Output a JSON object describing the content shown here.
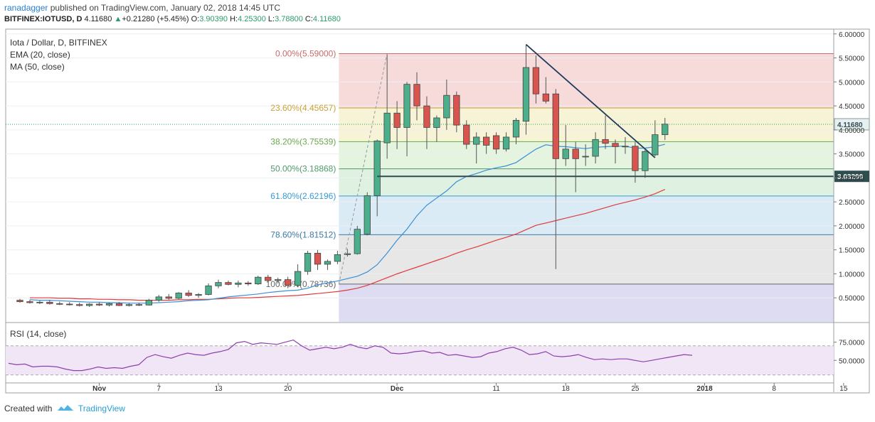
{
  "header": {
    "line1_user": "ranadagger",
    "line1_rest": "published on TradingView.com, January 02, 2018 14:45 UTC",
    "symbol": "BITFINEX:IOTUSD, D",
    "last": "4.11680",
    "arrow": "▲",
    "change": "+0.21280 (+5.45%)",
    "o_label": "O:",
    "o": "3.90390",
    "h_label": "H:",
    "h": "4.25300",
    "l_label": "L:",
    "l": "3.78800",
    "c_label": "C:",
    "c": "4.11680"
  },
  "legend": [
    "Iota / Dollar, D, BITFINEX",
    "EMA (20, close)",
    "MA (50, close)"
  ],
  "rsi_label": "RSI (14, close)",
  "footer": {
    "created": "Created with",
    "brand": "TradingView"
  },
  "colors": {
    "up": "#4caf8c",
    "down": "#d9534f",
    "ema": "#3b8ed6",
    "ma": "#e03a3a",
    "rsi": "#8e3fae"
  },
  "chart_data": {
    "type": "candlestick",
    "price_axis": {
      "ticks": [
        0.5,
        1.0,
        1.5,
        2.0,
        2.5,
        3.0,
        3.5,
        4.0,
        4.5,
        5.0,
        5.5,
        6.0
      ],
      "tick_labels": [
        "0.50000",
        "1.00000",
        "1.50000",
        "2.00000",
        "2.50000",
        "3.00000",
        "3.50000",
        "4.00000",
        "4.50000",
        "5.00000",
        "5.50000",
        "6.00000"
      ],
      "range": [
        0.0,
        6.1
      ],
      "last_price_label": "4.11680",
      "support_label": "3.03200"
    },
    "x_axis": {
      "labels": [
        {
          "text": "Nov",
          "day": 8
        },
        {
          "text": "7",
          "day": 14
        },
        {
          "text": "13",
          "day": 20
        },
        {
          "text": "20",
          "day": 27
        },
        {
          "text": "Dec",
          "day": 38
        },
        {
          "text": "11",
          "day": 48
        },
        {
          "text": "18",
          "day": 55
        },
        {
          "text": "25",
          "day": 62
        },
        {
          "text": "2018",
          "day": 69
        },
        {
          "text": "8",
          "day": 76
        },
        {
          "text": "15",
          "day": 83
        }
      ]
    },
    "candles": [
      {
        "o": 0.45,
        "h": 0.48,
        "l": 0.4,
        "c": 0.42
      },
      {
        "o": 0.42,
        "h": 0.46,
        "l": 0.38,
        "c": 0.4
      },
      {
        "o": 0.4,
        "h": 0.44,
        "l": 0.37,
        "c": 0.41
      },
      {
        "o": 0.41,
        "h": 0.45,
        "l": 0.36,
        "c": 0.38
      },
      {
        "o": 0.38,
        "h": 0.42,
        "l": 0.35,
        "c": 0.37
      },
      {
        "o": 0.37,
        "h": 0.41,
        "l": 0.34,
        "c": 0.36
      },
      {
        "o": 0.36,
        "h": 0.4,
        "l": 0.32,
        "c": 0.34
      },
      {
        "o": 0.34,
        "h": 0.39,
        "l": 0.31,
        "c": 0.37
      },
      {
        "o": 0.37,
        "h": 0.41,
        "l": 0.33,
        "c": 0.35
      },
      {
        "o": 0.35,
        "h": 0.4,
        "l": 0.32,
        "c": 0.38
      },
      {
        "o": 0.38,
        "h": 0.41,
        "l": 0.33,
        "c": 0.34
      },
      {
        "o": 0.34,
        "h": 0.39,
        "l": 0.32,
        "c": 0.36
      },
      {
        "o": 0.36,
        "h": 0.4,
        "l": 0.33,
        "c": 0.35
      },
      {
        "o": 0.35,
        "h": 0.48,
        "l": 0.34,
        "c": 0.45
      },
      {
        "o": 0.45,
        "h": 0.56,
        "l": 0.42,
        "c": 0.52
      },
      {
        "o": 0.52,
        "h": 0.58,
        "l": 0.46,
        "c": 0.49
      },
      {
        "o": 0.49,
        "h": 0.62,
        "l": 0.47,
        "c": 0.6
      },
      {
        "o": 0.6,
        "h": 0.66,
        "l": 0.52,
        "c": 0.55
      },
      {
        "o": 0.55,
        "h": 0.6,
        "l": 0.5,
        "c": 0.57
      },
      {
        "o": 0.57,
        "h": 0.8,
        "l": 0.55,
        "c": 0.75
      },
      {
        "o": 0.75,
        "h": 0.88,
        "l": 0.7,
        "c": 0.82
      },
      {
        "o": 0.82,
        "h": 0.86,
        "l": 0.76,
        "c": 0.78
      },
      {
        "o": 0.78,
        "h": 0.86,
        "l": 0.72,
        "c": 0.81
      },
      {
        "o": 0.81,
        "h": 0.85,
        "l": 0.75,
        "c": 0.79
      },
      {
        "o": 0.79,
        "h": 0.96,
        "l": 0.77,
        "c": 0.93
      },
      {
        "o": 0.93,
        "h": 0.98,
        "l": 0.82,
        "c": 0.86
      },
      {
        "o": 0.86,
        "h": 0.92,
        "l": 0.8,
        "c": 0.88
      },
      {
        "o": 0.88,
        "h": 0.94,
        "l": 0.7,
        "c": 0.76
      },
      {
        "o": 0.76,
        "h": 1.2,
        "l": 0.72,
        "c": 1.05
      },
      {
        "o": 1.05,
        "h": 1.48,
        "l": 0.98,
        "c": 1.43
      },
      {
        "o": 1.43,
        "h": 1.5,
        "l": 1.08,
        "c": 1.2
      },
      {
        "o": 1.2,
        "h": 1.3,
        "l": 1.08,
        "c": 1.26
      },
      {
        "o": 1.26,
        "h": 1.48,
        "l": 1.2,
        "c": 1.4
      },
      {
        "o": 1.4,
        "h": 1.52,
        "l": 1.36,
        "c": 1.42
      },
      {
        "o": 1.42,
        "h": 2.0,
        "l": 1.4,
        "c": 1.93
      },
      {
        "o": 1.83,
        "h": 2.7,
        "l": 1.8,
        "c": 2.63
      },
      {
        "o": 2.63,
        "h": 3.8,
        "l": 2.2,
        "c": 3.77
      },
      {
        "o": 3.73,
        "h": 5.59,
        "l": 3.4,
        "c": 4.35
      },
      {
        "o": 4.35,
        "h": 4.6,
        "l": 3.6,
        "c": 4.05
      },
      {
        "o": 4.05,
        "h": 5.0,
        "l": 3.45,
        "c": 4.95
      },
      {
        "o": 4.95,
        "h": 5.2,
        "l": 4.2,
        "c": 4.5
      },
      {
        "o": 4.5,
        "h": 4.7,
        "l": 3.6,
        "c": 4.05
      },
      {
        "o": 4.05,
        "h": 4.3,
        "l": 3.75,
        "c": 4.25
      },
      {
        "o": 4.25,
        "h": 5.05,
        "l": 4.0,
        "c": 4.72
      },
      {
        "o": 4.72,
        "h": 4.8,
        "l": 3.95,
        "c": 4.1
      },
      {
        "o": 4.1,
        "h": 4.2,
        "l": 3.6,
        "c": 3.7
      },
      {
        "o": 3.7,
        "h": 3.95,
        "l": 3.3,
        "c": 3.85
      },
      {
        "o": 3.85,
        "h": 3.95,
        "l": 3.5,
        "c": 3.68
      },
      {
        "o": 3.88,
        "h": 3.95,
        "l": 3.5,
        "c": 3.6
      },
      {
        "o": 3.6,
        "h": 3.95,
        "l": 3.55,
        "c": 3.85
      },
      {
        "o": 3.85,
        "h": 4.25,
        "l": 3.7,
        "c": 4.2
      },
      {
        "o": 4.18,
        "h": 5.78,
        "l": 3.9,
        "c": 5.3
      },
      {
        "o": 5.3,
        "h": 5.55,
        "l": 4.55,
        "c": 4.75
      },
      {
        "o": 4.75,
        "h": 5.1,
        "l": 4.55,
        "c": 4.6
      },
      {
        "o": 4.75,
        "h": 4.85,
        "l": 1.1,
        "c": 3.4
      },
      {
        "o": 3.4,
        "h": 4.1,
        "l": 3.25,
        "c": 3.6
      },
      {
        "o": 3.6,
        "h": 3.75,
        "l": 2.7,
        "c": 3.4
      },
      {
        "o": 3.45,
        "h": 3.7,
        "l": 3.25,
        "c": 3.45
      },
      {
        "o": 3.45,
        "h": 3.95,
        "l": 3.3,
        "c": 3.8
      },
      {
        "o": 3.8,
        "h": 4.3,
        "l": 3.6,
        "c": 3.72
      },
      {
        "o": 3.72,
        "h": 3.8,
        "l": 3.3,
        "c": 3.65
      },
      {
        "o": 3.66,
        "h": 3.85,
        "l": 3.5,
        "c": 3.66
      },
      {
        "o": 3.66,
        "h": 3.75,
        "l": 2.9,
        "c": 3.15
      },
      {
        "o": 3.15,
        "h": 3.6,
        "l": 3.0,
        "c": 3.55
      },
      {
        "o": 3.48,
        "h": 4.2,
        "l": 3.45,
        "c": 3.9
      },
      {
        "o": 3.9,
        "h": 4.25,
        "l": 3.79,
        "c": 4.12
      }
    ],
    "ema20": [
      0.46,
      0.45,
      0.45,
      0.44,
      0.43,
      0.42,
      0.41,
      0.41,
      0.4,
      0.4,
      0.39,
      0.39,
      0.39,
      0.4,
      0.41,
      0.42,
      0.44,
      0.45,
      0.46,
      0.49,
      0.52,
      0.54,
      0.56,
      0.58,
      0.61,
      0.63,
      0.65,
      0.66,
      0.7,
      0.77,
      0.81,
      0.85,
      0.9,
      0.95,
      1.04,
      1.19,
      1.43,
      1.7,
      1.93,
      2.21,
      2.43,
      2.58,
      2.73,
      2.92,
      3.03,
      3.09,
      3.16,
      3.21,
      3.25,
      3.32,
      3.46,
      3.6,
      3.69,
      3.66,
      3.65,
      3.63,
      3.61,
      3.64,
      3.65,
      3.66,
      3.66,
      3.62,
      3.62,
      3.65,
      3.7
    ],
    "ma50": [
      0.5,
      0.5,
      0.5,
      0.49,
      0.49,
      0.48,
      0.48,
      0.47,
      0.47,
      0.46,
      0.46,
      0.45,
      0.45,
      0.45,
      0.45,
      0.46,
      0.46,
      0.47,
      0.47,
      0.48,
      0.49,
      0.5,
      0.5,
      0.51,
      0.52,
      0.53,
      0.54,
      0.55,
      0.57,
      0.59,
      0.61,
      0.63,
      0.66,
      0.7,
      0.76,
      0.84,
      0.92,
      1.0,
      1.07,
      1.14,
      1.21,
      1.28,
      1.35,
      1.43,
      1.5,
      1.56,
      1.63,
      1.7,
      1.76,
      1.83,
      1.92,
      2.01,
      2.06,
      2.11,
      2.16,
      2.21,
      2.26,
      2.32,
      2.38,
      2.44,
      2.49,
      2.54,
      2.6,
      2.67,
      2.76
    ],
    "ma_start_index": 1,
    "fibonacci": {
      "from_price": 0.78736,
      "to_price": 5.59,
      "start_index": 33,
      "levels": [
        {
          "ratio": "0.00%",
          "price": 5.59,
          "label": "0.00%(5.59000)"
        },
        {
          "ratio": "23.60%",
          "price": 4.45657,
          "label": "23.60%(4.45657)"
        },
        {
          "ratio": "38.20%",
          "price": 3.75539,
          "label": "38.20%(3.75539)"
        },
        {
          "ratio": "50.00%",
          "price": 3.18868,
          "label": "50.00%(3.18868)"
        },
        {
          "ratio": "61.80%",
          "price": 2.62196,
          "label": "61.80%(2.62196)"
        },
        {
          "ratio": "78.60%",
          "price": 1.81512,
          "label": "78.60%(1.81512)"
        },
        {
          "ratio": "100.00%",
          "price": 0.78736,
          "label": "100.00%(0.78736)"
        }
      ],
      "zone_colors": [
        "#f6d5d3",
        "#f6f1cf",
        "#dff2d8",
        "#d9f0dc",
        "#d4e8f4",
        "#e3e3e3",
        "#d8d6f1"
      ]
    },
    "support_line": {
      "price": 3.032,
      "from_index": 36,
      "to_index": 87
    },
    "trendline": {
      "from_index": 51,
      "from_price": 5.78,
      "to_index": 64,
      "to_price": 3.42
    },
    "rsi": {
      "ticks": [
        50,
        75
      ],
      "tick_labels": [
        "50.0000",
        "75.0000"
      ],
      "upper": 70,
      "lower": 30,
      "range": [
        20,
        100
      ],
      "values": [
        46,
        44,
        45,
        41,
        42,
        42,
        41,
        38,
        36,
        36,
        38,
        41,
        39,
        40,
        39,
        42,
        44,
        54,
        58,
        55,
        53,
        57,
        60,
        58,
        57,
        60,
        62,
        65,
        74,
        76,
        72,
        74,
        73,
        72,
        75,
        78,
        70,
        64,
        66,
        68,
        66,
        68,
        72,
        68,
        66,
        70,
        68,
        60,
        59,
        60,
        62,
        63,
        60,
        61,
        57,
        58,
        56,
        54,
        55,
        60,
        62,
        66,
        68,
        64,
        58,
        59,
        62,
        56,
        55,
        56,
        58,
        54,
        51,
        52,
        51,
        52,
        52,
        50,
        48,
        50,
        52,
        54,
        56,
        58,
        57
      ]
    }
  }
}
